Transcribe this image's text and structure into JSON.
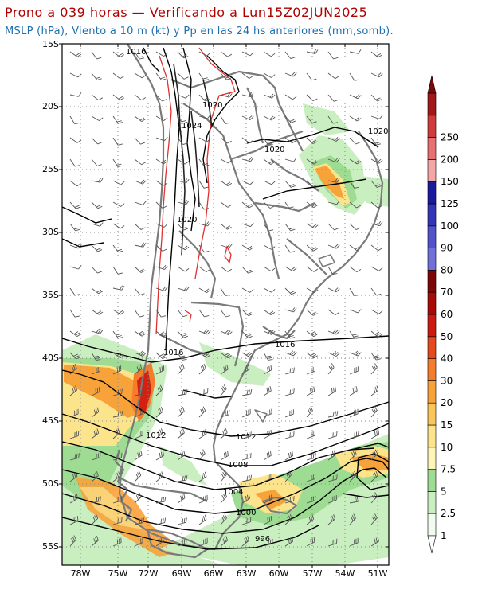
{
  "title": "Prono a 039 horas — Verificando a Lun15Z02JUN2025",
  "subtitle": "MSLP (hPa), Viento a 10 m (kt) y Pp en las 24 hs anteriores (mm,somb).",
  "lat_labels": [
    "15S",
    "20S",
    "25S",
    "30S",
    "35S",
    "40S",
    "45S",
    "50S",
    "55S"
  ],
  "lon_labels": [
    "78W",
    "75W",
    "72W",
    "69W",
    "66W",
    "63W",
    "60W",
    "57W",
    "54W",
    "51W"
  ],
  "isobar_labels": [
    "1016",
    "1020",
    "1024",
    "1020",
    "1020",
    "1020",
    "1016",
    "1016",
    "1012",
    "1012",
    "1008",
    "1004",
    "1000",
    "996"
  ],
  "colorbar": {
    "labels": [
      "1",
      "2.5",
      "5",
      "7.5",
      "10",
      "15",
      "20",
      "30",
      "40",
      "50",
      "60",
      "70",
      "80",
      "90",
      "100",
      "125",
      "150",
      "200",
      "250"
    ],
    "colors": [
      "#f2fbf0",
      "#c9eec0",
      "#9edc93",
      "#fcf5b6",
      "#fce48c",
      "#fbc55a",
      "#f8a23a",
      "#f47c2a",
      "#e44a1c",
      "#cc1a10",
      "#a80a08",
      "#7e0606",
      "#7070d8",
      "#5252cc",
      "#3434b8",
      "#1a1a9e",
      "#f4a6a6",
      "#e87070",
      "#d03c3c",
      "#a01818"
    ]
  },
  "precip_colors": {
    "green_light": "#c9eec0",
    "green": "#9edc93",
    "yellow": "#fce48c",
    "orange": "#f8a23a",
    "red": "#d42010"
  }
}
